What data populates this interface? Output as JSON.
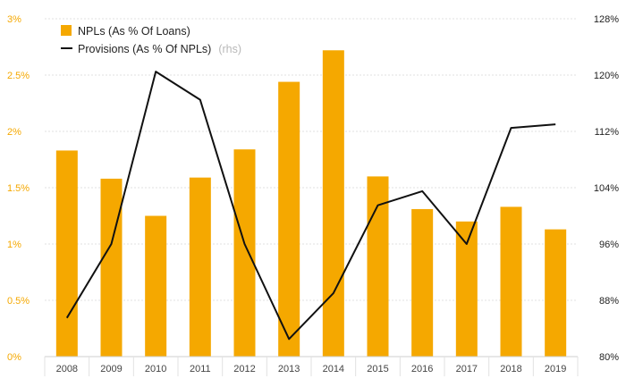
{
  "chart_data": {
    "type": "bar",
    "categories": [
      "2008",
      "2009",
      "2010",
      "2011",
      "2012",
      "2013",
      "2014",
      "2015",
      "2016",
      "2017",
      "2018",
      "2019"
    ],
    "series": [
      {
        "name": "NPLs (As % Of Loans)",
        "type": "bar",
        "axis": "left",
        "color": "#f5a800",
        "values": [
          1.83,
          1.58,
          1.25,
          1.59,
          1.84,
          2.44,
          2.72,
          1.6,
          1.31,
          1.2,
          1.33,
          1.13
        ]
      },
      {
        "name": "Provisions (As % Of NPLs)",
        "name_note": "(rhs)",
        "type": "line",
        "axis": "right",
        "color": "#111111",
        "values": [
          85.5,
          96.0,
          120.5,
          116.5,
          96.0,
          82.5,
          89.0,
          101.5,
          103.5,
          96.0,
          112.5,
          113.0
        ]
      }
    ],
    "y_left": {
      "ylim": [
        0,
        3
      ],
      "ticks": [
        0,
        0.5,
        1,
        1.5,
        2,
        2.5,
        3
      ],
      "tick_labels": [
        "0%",
        "0.5%",
        "1%",
        "1.5%",
        "2%",
        "2.5%",
        "3%"
      ]
    },
    "y_right": {
      "ylim": [
        80,
        128
      ],
      "ticks": [
        80,
        88,
        96,
        104,
        112,
        120,
        128
      ],
      "tick_labels": [
        "80%",
        "88%",
        "96%",
        "104%",
        "112%",
        "120%",
        "128%"
      ]
    },
    "grid": true,
    "legend_position": "top-left"
  }
}
